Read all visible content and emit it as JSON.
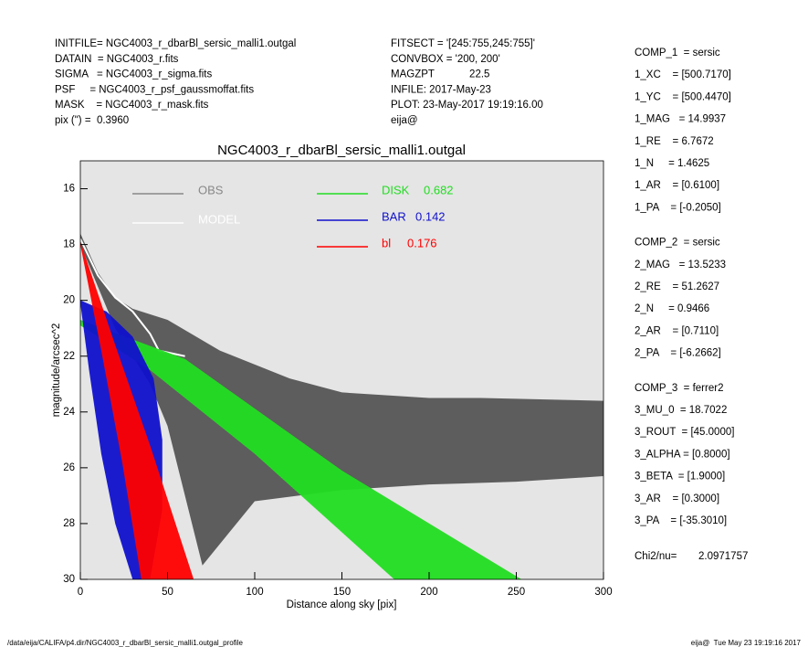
{
  "header": {
    "left": [
      "INITFILE= NGC4003_r_dbarBl_sersic_malli1.outgal",
      "DATAIN  = NGC4003_r.fits",
      "SIGMA   = NGC4003_r_sigma.fits",
      "PSF     = NGC4003_r_psf_gaussmoffat.fits",
      "MASK    = NGC4003_r_mask.fits",
      "pix (\") =  0.3960"
    ],
    "middle": [
      "FITSECT = '[245:755,245:755]'",
      "CONVBOX = '200, 200'",
      "MAGZPT            22.5",
      "INFILE: 2017-May-23",
      "PLOT: 23-May-2017 19:19:16.00",
      "eija@"
    ]
  },
  "params": {
    "comp1": [
      "COMP_1  = sersic",
      "1_XC    = [500.7170]",
      "1_YC    = [500.4470]",
      "1_MAG   = 14.9937",
      "1_RE    = 6.7672",
      "1_N     = 1.4625",
      "1_AR    = [0.6100]",
      "1_PA    = [-0.2050]"
    ],
    "comp2": [
      "COMP_2  = sersic",
      "2_MAG   = 13.5233",
      "2_RE    = 51.2627",
      "2_N     = 0.9466",
      "2_AR    = [0.7110]",
      "2_PA    = [-6.2662]"
    ],
    "comp3": [
      "COMP_3  = ferrer2",
      "3_MU_0  = 18.7022",
      "3_ROUT  = [45.0000]",
      "3_ALPHA = [0.8000]",
      "3_BETA  = [1.9000]",
      "3_AR    = [0.3000]",
      "3_PA    = [-35.3010]"
    ],
    "chi_label": "Chi2/nu=",
    "chi_value": "2.0971757"
  },
  "footer": {
    "left": "/data/eija/CALIFA/p4.dir/NGC4003_r_dbarBl_sersic_malli1.outgal_profile",
    "right": "eija@  Tue May 23 19:19:16 2017"
  },
  "chart_data": {
    "type": "scatter",
    "title": "NGC4003_r_dbarBl_sersic_malli1.outgal",
    "x_label": "Distance along sky [pix]",
    "y_label": "magnitude/arcsec^2",
    "xlim": [
      0,
      300
    ],
    "ylim": [
      30,
      15
    ],
    "xticks": [
      0,
      50,
      100,
      150,
      200,
      250,
      300
    ],
    "yticks": [
      16,
      18,
      20,
      22,
      24,
      26,
      28,
      30
    ],
    "series": [
      {
        "name": "OBS",
        "color": "#555555",
        "legend_color": "#888888",
        "x": [
          0,
          10,
          20,
          30,
          50,
          80,
          120,
          150,
          200,
          230,
          300
        ],
        "values": [
          17.6,
          19.0,
          19.9,
          20.3,
          20.7,
          21.8,
          22.8,
          23.3,
          23.5,
          23.5,
          23.6
        ],
        "x_low": [
          0,
          20,
          40,
          50,
          60,
          70,
          100,
          150,
          200,
          250,
          300
        ],
        "values_low": [
          18.0,
          21.0,
          23.0,
          24.5,
          27.0,
          29.5,
          27.2,
          26.8,
          26.6,
          26.5,
          26.3
        ]
      },
      {
        "name": "MODEL",
        "color": "#ffffff",
        "x": [
          0,
          10,
          20,
          30,
          40,
          45,
          60
        ],
        "values": [
          17.8,
          19.1,
          19.9,
          20.4,
          21.2,
          21.8,
          22.0
        ]
      },
      {
        "name": "DISK",
        "color": "#22dd22",
        "fraction": 0.682,
        "x": [
          0,
          60,
          150,
          253
        ],
        "values": [
          20.7,
          22.1,
          26.1,
          30
        ],
        "x_low": [
          0,
          40,
          100,
          180
        ],
        "values_low": [
          20.9,
          22.5,
          25.5,
          30
        ]
      },
      {
        "name": "BAR",
        "color": "#1010cc",
        "fraction": 0.142,
        "x": [
          0,
          15,
          30,
          42,
          47,
          47
        ],
        "values": [
          20.0,
          20.4,
          21.3,
          22.8,
          25,
          27.5
        ],
        "x_low": [
          0,
          5,
          12,
          20,
          30,
          40
        ],
        "values_low": [
          20.1,
          22.5,
          25.5,
          28,
          30,
          30
        ]
      },
      {
        "name": "bl",
        "color": "#ff0000",
        "fraction": 0.176,
        "x": [
          0,
          20,
          40,
          65
        ],
        "values": [
          17.9,
          21.6,
          25.2,
          30
        ],
        "x_low": [
          0,
          12,
          24,
          35
        ],
        "values_low": [
          18.0,
          21.8,
          25.8,
          30
        ]
      }
    ]
  }
}
